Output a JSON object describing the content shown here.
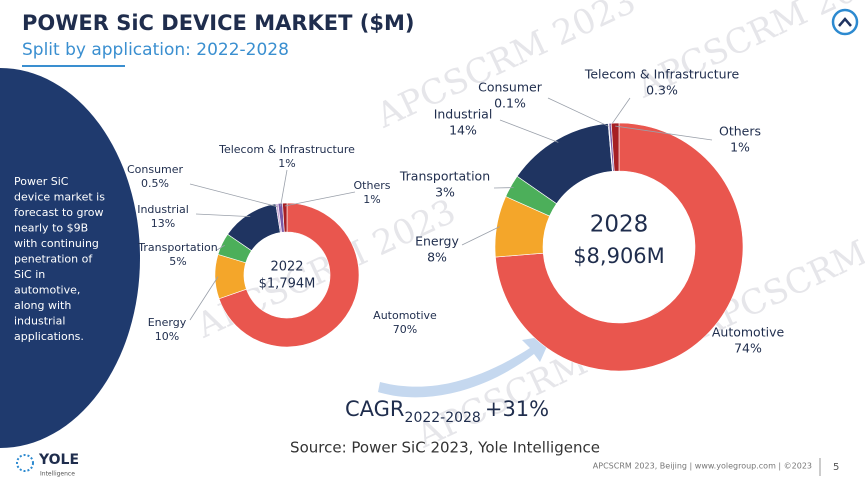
{
  "header": {
    "title": "POWER SiC DEVICE MARKET ($M)",
    "subtitle": "Split by application: 2022-2028"
  },
  "sidebar": {
    "lines": [
      "Power SiC",
      "device market is",
      "forecast to grow",
      "nearly to $9B",
      "with continuing",
      "penetration of",
      "SiC in",
      "automotive,",
      "along with",
      "industrial",
      "applications."
    ]
  },
  "cagr": {
    "label": "CAGR",
    "period": "2022-2028",
    "value": "+31%"
  },
  "source": "Source: Power SiC 2023, Yole Intelligence",
  "footer": {
    "text": "APCSCRM 2023, Beijing | www.yolegroup.com | ©2023",
    "page": "5",
    "logo": "YOLE",
    "logo_sub": "Intelligence"
  },
  "watermark": "APCSCRM 2023",
  "chart_data": [
    {
      "type": "donut",
      "center_label": "2022",
      "total_label": "$1,794M",
      "categories": [
        "Automotive",
        "Energy",
        "Transportation",
        "Industrial",
        "Consumer",
        "Telecom & Infrastructure",
        "Others"
      ],
      "values": [
        70,
        10,
        5,
        13,
        0.5,
        1,
        1
      ],
      "value_labels": [
        "70%",
        "10%",
        "5%",
        "13%",
        "0.5%",
        "1%",
        "1%"
      ],
      "colors": [
        "#e9564e",
        "#f4a62a",
        "#4caf5a",
        "#1f3461",
        "#c9a8d6",
        "#7a5aa6",
        "#a61f24"
      ]
    },
    {
      "type": "donut",
      "center_label": "2028",
      "total_label": "$8,906M",
      "categories": [
        "Automotive",
        "Energy",
        "Transportation",
        "Industrial",
        "Consumer",
        "Telecom & Infrastructure",
        "Others"
      ],
      "values": [
        74,
        8,
        3,
        14,
        0.1,
        0.3,
        1
      ],
      "value_labels": [
        "74%",
        "8%",
        "3%",
        "14%",
        "0.1%",
        "0.3%",
        "1%"
      ],
      "colors": [
        "#e9564e",
        "#f4a62a",
        "#4caf5a",
        "#1f3461",
        "#c9a8d6",
        "#7a5aa6",
        "#a61f24"
      ]
    }
  ]
}
